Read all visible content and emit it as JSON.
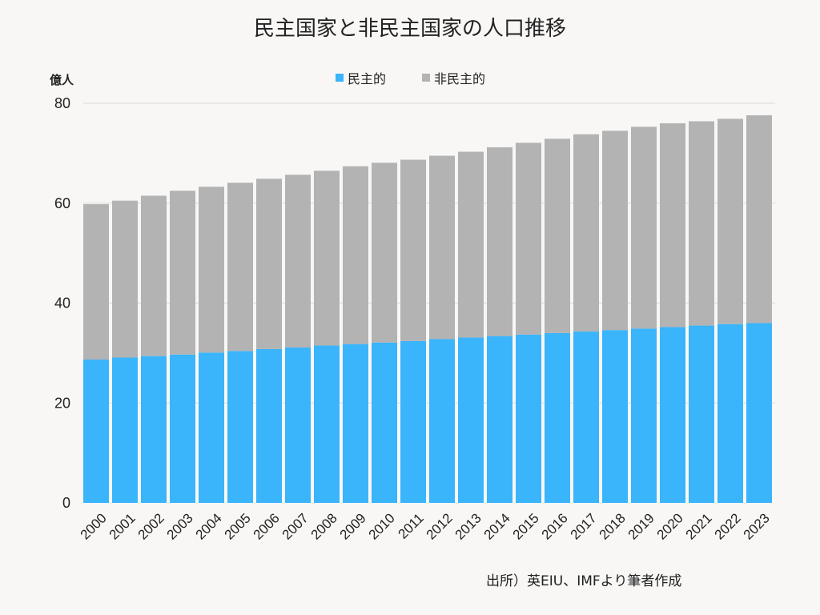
{
  "chart_data": {
    "type": "bar",
    "stacked": true,
    "title": "民主国家と非民主国家の人口推移",
    "ylabel": "億人",
    "xlabel": "",
    "ylim": [
      0,
      80
    ],
    "yticks": [
      0,
      20,
      40,
      60,
      80
    ],
    "grid": true,
    "legend_position": "top-center",
    "categories": [
      "2000",
      "2001",
      "2002",
      "2003",
      "2004",
      "2005",
      "2006",
      "2007",
      "2008",
      "2009",
      "2010",
      "2011",
      "2012",
      "2013",
      "2014",
      "2015",
      "2016",
      "2017",
      "2018",
      "2019",
      "2020",
      "2021",
      "2022",
      "2023"
    ],
    "series": [
      {
        "name": "民主的",
        "color": "#3ab4fb",
        "values": [
          28.7,
          29.1,
          29.4,
          29.7,
          30.1,
          30.4,
          30.8,
          31.1,
          31.5,
          31.8,
          32.1,
          32.4,
          32.8,
          33.1,
          33.4,
          33.7,
          34.0,
          34.3,
          34.6,
          34.9,
          35.2,
          35.5,
          35.8,
          36.0
        ]
      },
      {
        "name": "非民主的",
        "color": "#b3b3b3",
        "values": [
          31.1,
          31.4,
          32.1,
          32.8,
          33.2,
          33.7,
          34.1,
          34.6,
          35.0,
          35.6,
          36.0,
          36.3,
          36.7,
          37.2,
          37.8,
          38.4,
          38.9,
          39.5,
          39.9,
          40.4,
          40.8,
          40.9,
          41.1,
          41.6
        ]
      }
    ],
    "source_note": "出所）英EIU、IMFより筆者作成"
  }
}
